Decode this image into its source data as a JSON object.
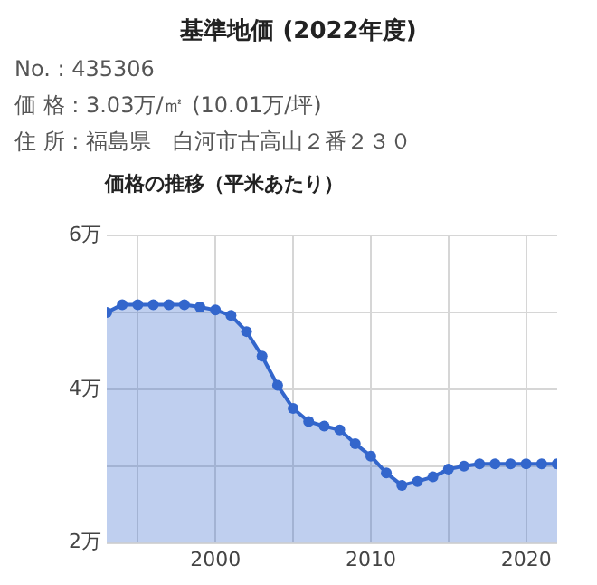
{
  "chart_data": {
    "type": "area",
    "title": "基準地価 (2022年度)",
    "subtitle": "価格の推移（平米あたり）",
    "annotations": [
      "No. : 435306",
      "価 格 : 3.03万/㎡ (10.01万/坪)",
      "住 所 : 福島県　白河市古高山２番２３０"
    ],
    "x": [
      1993,
      1994,
      1995,
      1996,
      1997,
      1998,
      1999,
      2000,
      2001,
      2002,
      2003,
      2004,
      2005,
      2006,
      2007,
      2008,
      2009,
      2010,
      2011,
      2012,
      2013,
      2014,
      2015,
      2016,
      2017,
      2018,
      2019,
      2020,
      2021,
      2022
    ],
    "series": [
      {
        "color": "#3366cc",
        "values": [
          5.0,
          5.1,
          5.1,
          5.1,
          5.1,
          5.1,
          5.07,
          5.03,
          4.96,
          4.75,
          4.43,
          4.05,
          3.75,
          3.58,
          3.52,
          3.47,
          3.29,
          3.13,
          2.91,
          2.75,
          2.8,
          2.86,
          2.96,
          3.0,
          3.03,
          3.03,
          3.03,
          3.03,
          3.03,
          3.03
        ]
      }
    ],
    "xlim": [
      1993,
      2022
    ],
    "xticks": [
      {
        "value": 1995,
        "label": null
      },
      2000,
      {
        "value": 2005,
        "label": null
      },
      2010,
      {
        "value": 2015,
        "label": null
      },
      2020
    ],
    "ylim": [
      2,
      6
    ],
    "yticks": [
      {
        "value": 2,
        "label": "2万"
      },
      {
        "value": 3,
        "label": null
      },
      {
        "value": 4,
        "label": "4万"
      },
      {
        "value": 5,
        "label": null
      },
      {
        "value": 6,
        "label": "6万"
      }
    ],
    "grid": true,
    "marker": "circle",
    "line_style": "solid"
  }
}
